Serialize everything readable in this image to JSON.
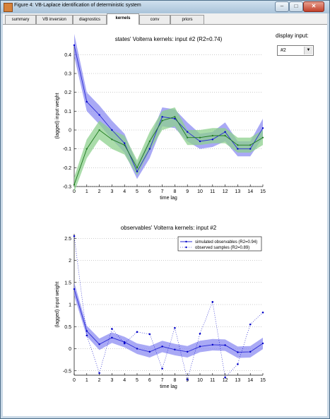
{
  "window": {
    "title": "Figure 4: VB-Laplace identification of deterministic system",
    "minimize_glyph": "–",
    "maximize_glyph": "□",
    "close_glyph": "✕",
    "icon": "matlab-figure-icon"
  },
  "tabs": [
    {
      "label": "summary"
    },
    {
      "label": "VB inversion"
    },
    {
      "label": "diagnostics"
    },
    {
      "label": "kernels",
      "active": true
    },
    {
      "label": "conv"
    },
    {
      "label": "priors"
    }
  ],
  "side_panel": {
    "label": "display input:",
    "select_value": "#2",
    "arrow_glyph": "▼"
  },
  "colors": {
    "blue_band": "#8c8cf2",
    "green_band": "#8ed08e",
    "blue_line": "#2b2bd6",
    "green_line": "#1e7a1e",
    "dots": "#0000c8"
  },
  "chart_data": [
    {
      "type": "line",
      "title": "states' Volterra kernels: input #2 (R2=0.74)",
      "xlabel": "time lag",
      "ylabel": "(lagged) input weight",
      "xlim": [
        0,
        15
      ],
      "ylim": [
        -0.3,
        0.45
      ],
      "xticks": [
        "0",
        "1",
        "2",
        "3",
        "4",
        "5",
        "6",
        "7",
        "8",
        "9",
        "10",
        "11",
        "12",
        "13",
        "14",
        "15"
      ],
      "yticks": [
        "0.4",
        "0.3",
        "0.2",
        "0.1",
        "0",
        "-0.1",
        "-0.2",
        "-0.3"
      ],
      "yticks_values": [
        0.4,
        0.3,
        0.2,
        0.1,
        0,
        -0.1,
        -0.2,
        -0.3
      ],
      "grid": "horizontal-dotted",
      "series": [
        {
          "x": [
            0,
            1,
            2,
            3,
            4,
            5,
            6,
            7,
            8,
            9,
            10,
            11,
            12,
            13,
            14,
            15
          ],
          "values": [
            0.45,
            0.15,
            0.08,
            0.0,
            -0.07,
            -0.22,
            -0.1,
            0.07,
            0.06,
            -0.01,
            -0.06,
            -0.05,
            -0.01,
            -0.1,
            -0.1,
            0.01
          ],
          "lower": [
            0.39,
            0.1,
            0.03,
            -0.05,
            -0.12,
            -0.26,
            -0.15,
            0.02,
            0.01,
            -0.06,
            -0.1,
            -0.09,
            -0.06,
            -0.14,
            -0.14,
            -0.04
          ],
          "upper": [
            0.51,
            0.2,
            0.13,
            0.05,
            -0.02,
            -0.18,
            -0.05,
            0.12,
            0.11,
            0.04,
            -0.02,
            -0.01,
            0.04,
            -0.06,
            -0.06,
            0.06
          ]
        },
        {
          "x": [
            0,
            1,
            2,
            3,
            4,
            5,
            6,
            7,
            8,
            9,
            10,
            11,
            12,
            13,
            14,
            15
          ],
          "values": [
            -0.29,
            -0.1,
            0.0,
            -0.05,
            -0.08,
            -0.2,
            -0.06,
            0.05,
            0.07,
            -0.04,
            -0.04,
            -0.03,
            -0.03,
            -0.08,
            -0.08,
            -0.04
          ],
          "lower": [
            -0.33,
            -0.15,
            -0.05,
            -0.1,
            -0.13,
            -0.24,
            -0.11,
            0.0,
            0.02,
            -0.08,
            -0.08,
            -0.07,
            -0.07,
            -0.12,
            -0.12,
            -0.08
          ],
          "upper": [
            -0.25,
            -0.05,
            0.05,
            0.0,
            -0.03,
            -0.16,
            -0.01,
            0.1,
            0.12,
            0.0,
            0.0,
            0.01,
            0.01,
            -0.04,
            -0.04,
            0.0
          ]
        }
      ]
    },
    {
      "type": "line",
      "title": "observables' Volterra kernels: input #2",
      "xlabel": "time lag",
      "ylabel": "(lagged) input weight",
      "xlim": [
        0,
        15
      ],
      "ylim": [
        -0.6,
        2.6
      ],
      "xticks": [
        "0",
        "1",
        "2",
        "3",
        "4",
        "5",
        "6",
        "7",
        "8",
        "9",
        "10",
        "11",
        "12",
        "13",
        "14",
        "15"
      ],
      "yticks": [
        "2.5",
        "2",
        "1.5",
        "1",
        "0.5",
        "0",
        "-0.5"
      ],
      "yticks_values": [
        2.5,
        2,
        1.5,
        1,
        0.5,
        0,
        -0.5
      ],
      "grid": "horizontal-dotted",
      "legend": [
        "simulated observables (R2=0.94)",
        "observed samples (R2=0.89)"
      ],
      "legend_position": "top-right",
      "series": [
        {
          "name": "simulated observables (R2=0.94)",
          "x": [
            0,
            1,
            2,
            3,
            4,
            5,
            6,
            7,
            8,
            9,
            10,
            11,
            12,
            13,
            14,
            15
          ],
          "values": [
            1.35,
            0.4,
            0.1,
            0.25,
            0.15,
            0.0,
            -0.07,
            0.05,
            -0.02,
            -0.07,
            0.05,
            0.09,
            0.08,
            -0.08,
            -0.07,
            0.12
          ],
          "lower": [
            1.2,
            0.28,
            -0.03,
            0.13,
            0.03,
            -0.12,
            -0.2,
            -0.08,
            -0.15,
            -0.2,
            -0.08,
            -0.04,
            -0.05,
            -0.21,
            -0.2,
            -0.01
          ],
          "upper": [
            1.5,
            0.52,
            0.23,
            0.37,
            0.27,
            0.12,
            0.06,
            0.18,
            0.11,
            0.06,
            0.18,
            0.22,
            0.21,
            0.05,
            0.06,
            0.25
          ]
        },
        {
          "name": "observed samples (R2=0.89)",
          "x": [
            0,
            1,
            2,
            3,
            4,
            5,
            6,
            7,
            8,
            9,
            10,
            11,
            12,
            13,
            14,
            15
          ],
          "values": [
            2.55,
            0.3,
            -0.55,
            0.45,
            0.12,
            0.38,
            0.33,
            -0.45,
            0.47,
            -0.7,
            0.34,
            1.06,
            -0.65,
            -0.35,
            0.55,
            0.82
          ]
        }
      ]
    }
  ]
}
